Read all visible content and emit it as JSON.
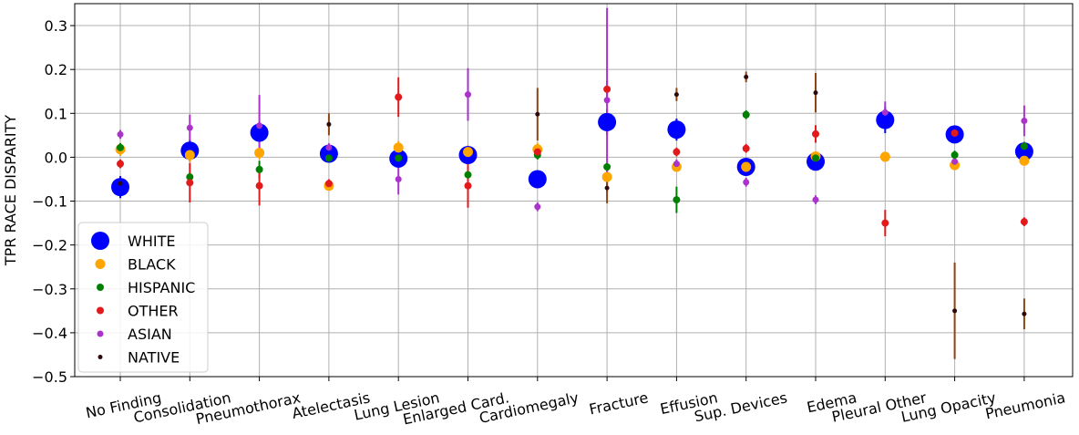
{
  "chart_data": {
    "type": "scatter",
    "title": "",
    "xlabel": "",
    "ylabel": "TPR RACE DISPARITY",
    "ylim": [
      -0.5,
      0.35
    ],
    "yticks": [
      -0.5,
      -0.4,
      -0.3,
      -0.2,
      -0.1,
      0.0,
      0.1,
      0.2,
      0.3
    ],
    "ytick_labels": [
      "−0.5",
      "−0.4",
      "−0.3",
      "−0.2",
      "−0.1",
      "0.0",
      "0.1",
      "0.2",
      "0.3"
    ],
    "grid": true,
    "legend_position": "lower-left",
    "categories": [
      "No Finding",
      "Consolidation",
      "Pneumothorax",
      "Atelectasis",
      "Lung Lesion",
      "Enlarged Card.",
      "Cardiomegaly",
      "Fracture",
      "Effusion",
      "Sup. Devices",
      "Edema",
      "Pleural Other",
      "Lung Opacity",
      "Pneumonia"
    ],
    "series": [
      {
        "name": "WHITE",
        "color": "#0000ff",
        "marker_size": "largest",
        "values": [
          -0.068,
          0.015,
          0.056,
          0.008,
          -0.003,
          0.005,
          -0.05,
          0.08,
          0.063,
          -0.022,
          -0.01,
          0.085,
          0.052,
          0.013
        ],
        "errors": [
          0.025,
          0.025,
          0.02,
          0.02,
          0.02,
          0.02,
          0.02,
          0.03,
          0.025,
          0.02,
          0.02,
          0.03,
          0.02,
          0.015
        ]
      },
      {
        "name": "BLACK",
        "color": "#ffa500",
        "marker_size": "large",
        "values": [
          0.018,
          0.005,
          0.01,
          -0.065,
          0.022,
          0.012,
          0.018,
          -0.045,
          -0.022,
          -0.022,
          0.002,
          0.001,
          -0.018,
          -0.008
        ],
        "errors": [
          0.015,
          0.015,
          0.015,
          0.01,
          0.015,
          0.015,
          0.015,
          0.015,
          0.01,
          0.01,
          0.01,
          0.01,
          0.01,
          0.01
        ]
      },
      {
        "name": "HISPANIC",
        "color": "#008000",
        "marker_size": "medium",
        "values": [
          0.022,
          -0.045,
          -0.028,
          -0.002,
          -0.002,
          -0.04,
          0.005,
          -0.022,
          -0.097,
          0.097,
          -0.002,
          null,
          0.005,
          0.025
        ],
        "errors": [
          0.01,
          0.01,
          0.02,
          0.01,
          0.01,
          0.01,
          0.01,
          0.01,
          0.03,
          0.01,
          0.01,
          null,
          0.01,
          0.01
        ]
      },
      {
        "name": "OTHER",
        "color": "#e31a1c",
        "marker_size": "medium",
        "values": [
          -0.015,
          -0.058,
          -0.065,
          -0.06,
          0.137,
          -0.065,
          0.012,
          0.155,
          0.012,
          0.02,
          0.053,
          -0.15,
          0.055,
          -0.147
        ],
        "errors": [
          0.01,
          0.045,
          0.045,
          0.01,
          0.045,
          0.05,
          0.01,
          0.02,
          0.01,
          0.01,
          0.02,
          0.03,
          0.01,
          0.01
        ]
      },
      {
        "name": "ASIAN",
        "color": "#aa33cc",
        "marker_size": "small",
        "values": [
          0.052,
          0.067,
          0.072,
          0.022,
          -0.05,
          0.143,
          -0.113,
          0.13,
          -0.015,
          -0.057,
          -0.097,
          0.102,
          -0.01,
          0.083
        ],
        "errors": [
          0.01,
          0.03,
          0.07,
          0.01,
          0.035,
          0.06,
          0.01,
          0.21,
          0.01,
          0.01,
          0.01,
          0.025,
          0.01,
          0.035
        ]
      },
      {
        "name": "NATIVE",
        "color": "#2a0a0a",
        "marker_size": "smallest",
        "values": [
          -0.06,
          null,
          null,
          0.075,
          null,
          null,
          0.098,
          -0.07,
          0.143,
          0.183,
          0.147,
          null,
          -0.35,
          -0.357
        ],
        "errors": [
          0.01,
          null,
          null,
          0.025,
          null,
          null,
          0.06,
          0.035,
          0.015,
          0.012,
          0.045,
          null,
          0.11,
          0.035
        ],
        "error_color": "#8b4513"
      }
    ]
  }
}
